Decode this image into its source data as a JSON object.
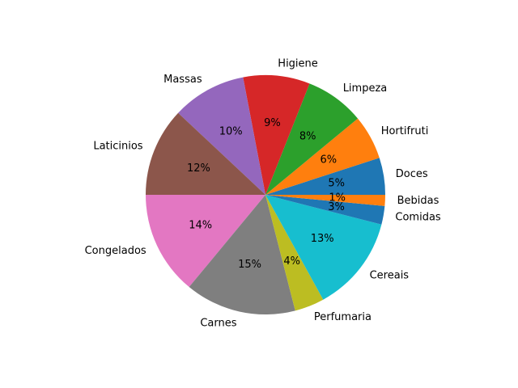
{
  "chart_data": {
    "type": "pie",
    "title": "",
    "start_angle_deg": 0,
    "direction": "counterclockwise",
    "slices": [
      {
        "label": "Doces",
        "value": 5,
        "pct_label": "5%",
        "color": "#1f77b4"
      },
      {
        "label": "Hortifruti",
        "value": 6,
        "pct_label": "6%",
        "color": "#ff7f0e"
      },
      {
        "label": "Limpeza",
        "value": 8,
        "pct_label": "8%",
        "color": "#2ca02c"
      },
      {
        "label": "Higiene",
        "value": 9,
        "pct_label": "9%",
        "color": "#d62728"
      },
      {
        "label": "Massas",
        "value": 10,
        "pct_label": "10%",
        "color": "#9467bd"
      },
      {
        "label": "Laticinios",
        "value": 12,
        "pct_label": "12%",
        "color": "#8c564b"
      },
      {
        "label": "Congelados",
        "value": 14,
        "pct_label": "14%",
        "color": "#e377c2"
      },
      {
        "label": "Carnes",
        "value": 15,
        "pct_label": "15%",
        "color": "#7f7f7f"
      },
      {
        "label": "Perfumaria",
        "value": 4,
        "pct_label": "4%",
        "color": "#bcbd22"
      },
      {
        "label": "Cereais",
        "value": 13,
        "pct_label": "13%",
        "color": "#17becf"
      },
      {
        "label": "Comidas",
        "value": 2.5,
        "pct_label": "3%",
        "color": "#1f77b4"
      },
      {
        "label": "Bebidas",
        "value": 1.5,
        "pct_label": "1%",
        "color": "#ff7f0e"
      }
    ]
  }
}
